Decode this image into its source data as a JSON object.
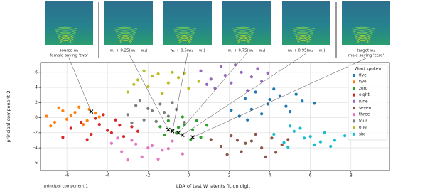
{
  "panels": [
    {
      "caption": [
        "source w₁",
        "female saying 'two'"
      ]
    },
    {
      "caption": [
        "w₁ + 0.25(w₂ − w₁)"
      ]
    },
    {
      "caption": [
        "w₁ + 0.5(w₂ − w₁)"
      ]
    },
    {
      "caption": [
        "w₁ + 0.75(w₂ − w₁)"
      ]
    },
    {
      "caption": [
        "w₁ + 0.95(w₂ − w₁)"
      ]
    },
    {
      "caption": [
        "target w₂",
        "male saying 'zero'"
      ]
    }
  ],
  "chart_data": {
    "type": "scatter",
    "xlabel": "LDA of test W latents fit on digit",
    "ylabel": "principal component 2",
    "xlabel_secondary": "principal component 1",
    "legend_title": "Word spoken",
    "legend": "upper right",
    "grid": true,
    "xlim": [
      -7.3,
      9.9
    ],
    "ylim": [
      -7,
      7.3
    ],
    "xticks": [
      -6,
      -4,
      -2,
      0,
      2,
      4,
      6,
      8
    ],
    "yticks": [
      -6,
      -4,
      -2,
      0,
      2,
      4,
      6
    ],
    "series": [
      {
        "name": "five",
        "color": "#1f77b4",
        "x": [
          2.1,
          2.8,
          3.3,
          3.9,
          4.5,
          5.0,
          5.6,
          2.5,
          3.1,
          4.2,
          4.8,
          3.6,
          5.3,
          2.9,
          4.0,
          6.2
        ],
        "values": [
          1.0,
          2.5,
          3.4,
          1.8,
          2.9,
          0.8,
          2.2,
          0.2,
          1.1,
          3.8,
          1.5,
          0.5,
          3.1,
          -0.3,
          2.4,
          1.9
        ]
      },
      {
        "name": "two",
        "color": "#ff7f0e",
        "x": [
          -7.0,
          -6.6,
          -6.2,
          -5.8,
          -5.4,
          -5.0,
          -4.6,
          -6.8,
          -6.0,
          -5.6,
          -4.9,
          -5.2,
          -6.4,
          -4.4
        ],
        "values": [
          0.2,
          -0.6,
          0.9,
          0.3,
          1.4,
          -0.4,
          0.6,
          -1.1,
          -0.2,
          0.7,
          1.1,
          -0.9,
          1.3,
          0.1
        ]
      },
      {
        "name": "zero",
        "color": "#2ca02c",
        "x": [
          -1.4,
          -1.0,
          -0.6,
          -0.2,
          0.2,
          0.6,
          -1.2,
          -0.8,
          -0.3,
          0.1,
          0.9,
          -0.5,
          -1.6,
          0.4
        ],
        "values": [
          -1.2,
          -0.4,
          -2.0,
          -0.9,
          -1.6,
          -2.6,
          -2.3,
          -1.7,
          0.1,
          -2.9,
          -1.0,
          -1.3,
          -0.5,
          -0.4
        ]
      },
      {
        "name": "eight",
        "color": "#d62728",
        "x": [
          -5.8,
          -5.3,
          -4.8,
          -4.4,
          -4.0,
          -3.6,
          -3.2,
          -2.8,
          -5.0,
          -4.2,
          -3.8,
          -3.4,
          -4.6,
          -6.2,
          -2.5
        ],
        "values": [
          -1.4,
          -0.6,
          -2.2,
          -0.9,
          -1.7,
          -0.3,
          -2.5,
          -1.2,
          -2.9,
          0.4,
          -2.0,
          -1.0,
          -0.1,
          -2.6,
          -1.8
        ]
      },
      {
        "name": "nine",
        "color": "#9467bd",
        "x": [
          0.6,
          1.1,
          1.6,
          2.1,
          2.6,
          3.1,
          3.6,
          1.3,
          2.3,
          2.9,
          3.9,
          0.9,
          1.8,
          3.4
        ],
        "values": [
          6.2,
          5.1,
          6.8,
          4.6,
          6.0,
          5.4,
          4.8,
          3.9,
          7.0,
          3.6,
          5.9,
          4.4,
          5.6,
          6.5
        ]
      },
      {
        "name": "seven",
        "color": "#8c564b",
        "x": [
          1.1,
          1.6,
          2.1,
          2.6,
          3.1,
          3.6,
          4.1,
          4.6,
          1.9,
          2.8,
          3.3,
          4.3,
          3.8,
          2.4,
          4.9
        ],
        "values": [
          -2.9,
          -3.8,
          -2.4,
          -4.5,
          -3.1,
          -4.0,
          -2.7,
          -3.6,
          -4.9,
          -3.4,
          -2.2,
          -4.6,
          -5.2,
          -3.0,
          -2.9
        ]
      },
      {
        "name": "three",
        "color": "#e377c2",
        "x": [
          -3.8,
          -3.3,
          -2.8,
          -2.3,
          -1.8,
          -1.3,
          -0.8,
          -0.3,
          -3.0,
          -2.0,
          -1.5,
          -2.6,
          -1.0,
          -3.5
        ],
        "values": [
          -3.4,
          -4.5,
          -3.0,
          -5.2,
          -3.7,
          -4.3,
          -3.1,
          -4.8,
          -5.6,
          -4.0,
          -5.5,
          -3.5,
          -4.1,
          -2.7
        ]
      },
      {
        "name": "four",
        "color": "#7f7f7f",
        "x": [
          -3.0,
          -2.6,
          -2.2,
          -1.8,
          -1.4,
          -1.0,
          -0.6,
          -0.2,
          -2.4,
          -1.6,
          -1.2,
          -0.8,
          -2.8,
          -2.0
        ],
        "values": [
          0.4,
          1.6,
          -0.3,
          0.9,
          1.8,
          0.2,
          1.1,
          -0.6,
          2.3,
          -0.5,
          0.7,
          2.0,
          -0.7,
          1.2
        ]
      },
      {
        "name": "one",
        "color": "#bcbd22",
        "x": [
          -3.0,
          -2.5,
          -2.0,
          -1.5,
          -1.0,
          -0.5,
          0.0,
          0.5,
          -2.2,
          -1.3,
          -0.8,
          -1.8,
          -0.2,
          -2.7
        ],
        "values": [
          3.4,
          5.0,
          4.1,
          5.8,
          4.6,
          5.3,
          3.9,
          4.8,
          6.2,
          3.2,
          6.0,
          5.5,
          5.9,
          4.4
        ]
      },
      {
        "name": "six",
        "color": "#17becf",
        "x": [
          4.2,
          4.7,
          5.2,
          5.7,
          6.2,
          6.7,
          7.2,
          7.7,
          4.9,
          5.5,
          6.0,
          6.5,
          5.0,
          7.0,
          8.0
        ],
        "values": [
          -2.2,
          -3.3,
          -1.8,
          -2.7,
          -3.6,
          -2.0,
          -3.0,
          -2.4,
          -3.9,
          -1.4,
          -2.5,
          -3.2,
          -1.1,
          -3.8,
          -2.0
        ]
      }
    ],
    "interpolations": {
      "color": "#000000",
      "x": [
        -4.8,
        -1.0,
        -0.8,
        -0.5,
        -0.3,
        0.2
      ],
      "values": [
        0.8,
        -1.6,
        -1.8,
        -2.0,
        -2.3,
        -2.6
      ]
    }
  }
}
